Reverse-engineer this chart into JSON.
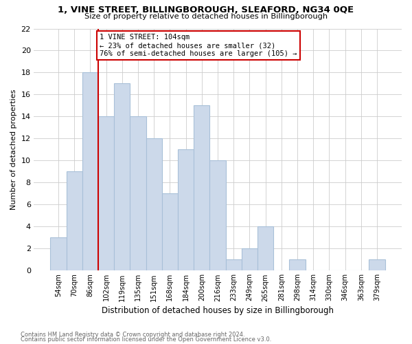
{
  "title": "1, VINE STREET, BILLINGBOROUGH, SLEAFORD, NG34 0QE",
  "subtitle": "Size of property relative to detached houses in Billingborough",
  "xlabel": "Distribution of detached houses by size in Billingborough",
  "ylabel": "Number of detached properties",
  "annotation_line1": "1 VINE STREET: 104sqm",
  "annotation_line2": "← 23% of detached houses are smaller (32)",
  "annotation_line3": "76% of semi-detached houses are larger (105) →",
  "bar_color": "#ccd9ea",
  "bar_edge_color": "#a8c0d8",
  "marker_color": "#cc0000",
  "categories": [
    "54sqm",
    "70sqm",
    "86sqm",
    "102sqm",
    "119sqm",
    "135sqm",
    "151sqm",
    "168sqm",
    "184sqm",
    "200sqm",
    "216sqm",
    "233sqm",
    "249sqm",
    "265sqm",
    "281sqm",
    "298sqm",
    "314sqm",
    "330sqm",
    "346sqm",
    "363sqm",
    "379sqm"
  ],
  "values": [
    3,
    9,
    18,
    14,
    17,
    14,
    12,
    7,
    11,
    15,
    10,
    1,
    2,
    4,
    0,
    1,
    0,
    0,
    0,
    0,
    1
  ],
  "ylim": [
    0,
    22
  ],
  "yticks": [
    0,
    2,
    4,
    6,
    8,
    10,
    12,
    14,
    16,
    18,
    20,
    22
  ],
  "marker_bar_index": 3,
  "footnote1": "Contains HM Land Registry data © Crown copyright and database right 2024.",
  "footnote2": "Contains public sector information licensed under the Open Government Licence v3.0.",
  "background_color": "#ffffff",
  "grid_color": "#cccccc"
}
